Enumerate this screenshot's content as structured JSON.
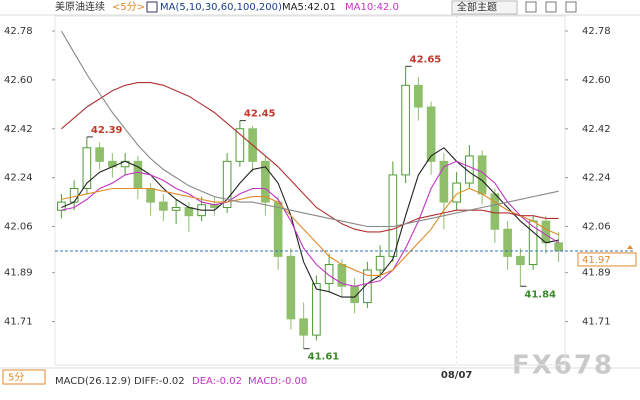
{
  "header": {
    "symbol": "美原油连续",
    "period": "<5分>",
    "ma_params": "MA(5,10,30,60,100,200)",
    "ma5": "MA5:42.01",
    "ma10": "MA10:42.0",
    "theme_button": "全部主题"
  },
  "chart_data": {
    "type": "candlestick",
    "categories": [
      null,
      null,
      null,
      null,
      null,
      null,
      null,
      null,
      null,
      null,
      null,
      null,
      null,
      null,
      null,
      null,
      null,
      null,
      null,
      null,
      null,
      null,
      null,
      null,
      null,
      null,
      null,
      null,
      null,
      null,
      null,
      "08/07",
      null,
      null,
      null,
      null,
      null,
      null,
      null,
      null
    ],
    "open": [
      42.12,
      42.15,
      42.2,
      42.35,
      42.3,
      42.28,
      42.3,
      42.2,
      42.15,
      42.12,
      42.13,
      42.1,
      42.14,
      42.13,
      42.3,
      42.42,
      42.3,
      42.15,
      41.95,
      41.72,
      41.66,
      41.85,
      41.92,
      41.84,
      41.78,
      41.9,
      41.95,
      42.25,
      42.58,
      42.5,
      42.3,
      42.15,
      42.22,
      42.32,
      42.18,
      42.05,
      41.95,
      41.92,
      42.08,
      42.0
    ],
    "high": [
      42.18,
      42.23,
      42.39,
      42.37,
      42.33,
      42.33,
      42.32,
      42.22,
      42.18,
      42.16,
      42.15,
      42.17,
      42.17,
      42.33,
      42.45,
      42.43,
      42.32,
      42.17,
      41.98,
      41.78,
      41.88,
      41.96,
      41.94,
      41.87,
      41.93,
      41.99,
      42.3,
      42.65,
      42.61,
      42.52,
      42.33,
      42.26,
      42.36,
      42.34,
      42.2,
      42.08,
      41.98,
      42.1,
      42.1,
      42.04
    ],
    "low": [
      42.09,
      42.12,
      42.18,
      42.27,
      42.24,
      42.25,
      42.16,
      42.1,
      42.08,
      42.07,
      42.04,
      42.08,
      42.1,
      42.11,
      42.28,
      42.26,
      42.1,
      41.9,
      41.68,
      41.61,
      41.64,
      41.82,
      41.8,
      41.74,
      41.76,
      41.87,
      41.93,
      42.22,
      42.45,
      42.25,
      42.05,
      42.12,
      42.2,
      42.14,
      42.0,
      41.9,
      41.84,
      41.9,
      41.96,
      41.93
    ],
    "close": [
      42.15,
      42.2,
      42.35,
      42.3,
      42.28,
      42.3,
      42.2,
      42.15,
      42.12,
      42.13,
      42.1,
      42.14,
      42.13,
      42.3,
      42.42,
      42.3,
      42.15,
      41.95,
      41.72,
      41.66,
      41.85,
      41.92,
      41.84,
      41.78,
      41.9,
      41.95,
      42.25,
      42.58,
      42.5,
      42.3,
      42.15,
      42.22,
      42.32,
      42.18,
      42.05,
      41.95,
      41.92,
      42.08,
      42.0,
      41.97
    ],
    "up_color": "#4f9a35",
    "down_color": "#8fbf6a",
    "series": [
      {
        "color": "#222222",
        "values": [
          42.13,
          42.15,
          42.22,
          42.26,
          42.28,
          42.3,
          42.28,
          42.25,
          42.2,
          42.16,
          42.13,
          42.12,
          42.12,
          42.16,
          42.22,
          42.27,
          42.28,
          42.22,
          42.1,
          41.93,
          41.83,
          41.82,
          41.8,
          41.8,
          41.85,
          41.88,
          41.94,
          42.1,
          42.25,
          42.32,
          42.35,
          42.3,
          42.26,
          42.23,
          42.18,
          42.13,
          42.08,
          42.04,
          42.0,
          42.01
        ]
      },
      {
        "color": "#c435c4",
        "values": [
          42.12,
          42.13,
          42.16,
          42.2,
          42.22,
          42.25,
          42.26,
          42.25,
          42.23,
          42.2,
          42.18,
          42.15,
          42.14,
          42.15,
          42.18,
          42.2,
          42.2,
          42.16,
          42.08,
          41.98,
          41.92,
          41.88,
          41.85,
          41.84,
          41.85,
          41.86,
          41.9,
          41.98,
          42.08,
          42.2,
          42.28,
          42.3,
          42.28,
          42.26,
          42.22,
          42.15,
          42.1,
          42.06,
          42.03,
          42.0
        ]
      },
      {
        "color": "#e08a2a",
        "values": [
          42.16,
          42.17,
          42.18,
          42.19,
          42.2,
          42.2,
          42.2,
          42.2,
          42.19,
          42.18,
          42.17,
          42.16,
          42.15,
          42.15,
          42.16,
          42.17,
          42.17,
          42.15,
          42.1,
          42.05,
          42.0,
          41.95,
          41.92,
          41.9,
          41.88,
          41.88,
          41.9,
          41.95,
          42.0,
          42.05,
          42.12,
          42.18,
          42.2,
          42.18,
          42.15,
          42.12,
          42.1,
          42.08,
          42.05,
          42.03
        ]
      },
      {
        "color": "#b03030",
        "values": [
          42.42,
          42.46,
          42.5,
          42.53,
          42.56,
          42.58,
          42.59,
          42.59,
          42.58,
          42.56,
          42.54,
          42.51,
          42.48,
          42.44,
          42.4,
          42.36,
          42.32,
          42.28,
          42.23,
          42.18,
          42.13,
          42.1,
          42.07,
          42.05,
          42.04,
          42.04,
          42.05,
          42.07,
          42.09,
          42.1,
          42.11,
          42.12,
          42.12,
          42.12,
          42.11,
          42.11,
          42.1,
          42.1,
          42.09,
          42.09
        ]
      },
      {
        "color": "#888888",
        "values": [
          42.78,
          42.7,
          42.62,
          42.55,
          42.48,
          42.42,
          42.36,
          42.31,
          42.27,
          42.24,
          42.21,
          42.19,
          42.17,
          42.16,
          42.15,
          42.15,
          42.14,
          42.13,
          42.12,
          42.11,
          42.1,
          42.09,
          42.08,
          42.07,
          42.06,
          42.06,
          42.06,
          42.07,
          42.08,
          42.09,
          42.1,
          42.11,
          42.12,
          42.13,
          42.14,
          42.15,
          42.16,
          42.17,
          42.18,
          42.19
        ]
      }
    ],
    "ylim": [
      41.55,
      42.85
    ],
    "yticks": [
      42.78,
      {
        "value": 42.6,
        "label": "42.60"
      },
      42.42,
      42.24,
      42.06,
      41.89,
      41.71
    ],
    "annotations": [
      42.39,
      42.65,
      42.45,
      41.61,
      41.84
    ],
    "last_price": 41.97
  },
  "footer": {
    "period": "5分",
    "macd": "MACD(26.12.9)",
    "diff": "DIFF:-0.02",
    "dea": "DEA:-0.02",
    "macd_value": "MACD:-0.00"
  },
  "watermark": "FX678"
}
